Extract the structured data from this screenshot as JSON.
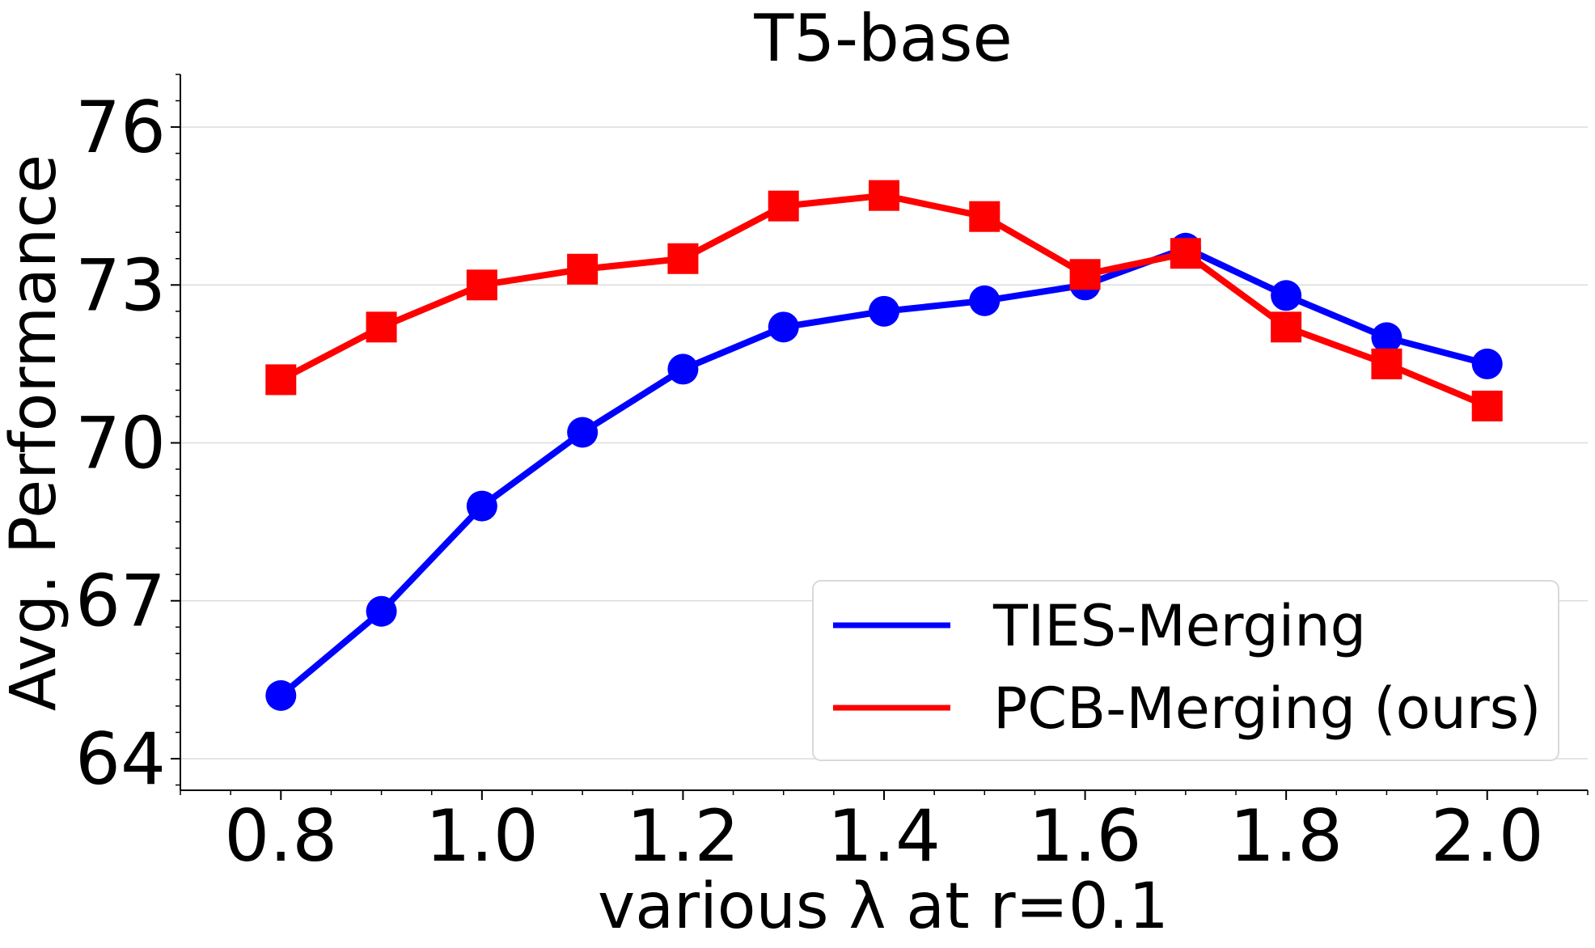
{
  "chart_data": {
    "type": "line",
    "title": "T5-base",
    "xlabel": "various λ at r=0.1",
    "ylabel": "Avg. Performance",
    "x": [
      0.8,
      0.9,
      1.0,
      1.1,
      1.2,
      1.3,
      1.4,
      1.5,
      1.6,
      1.7,
      1.8,
      1.9,
      2.0
    ],
    "xlim": [
      0.7,
      2.1
    ],
    "ylim": [
      63.4,
      77.0
    ],
    "xticks": [
      0.8,
      1.0,
      1.2,
      1.4,
      1.6,
      1.8,
      2.0
    ],
    "xtick_labels": [
      "0.8",
      "1.0",
      "1.2",
      "1.4",
      "1.6",
      "1.8",
      "2.0"
    ],
    "yticks": [
      64,
      67,
      70,
      73,
      76
    ],
    "ytick_labels": [
      "64",
      "67",
      "70",
      "73",
      "76"
    ],
    "grid": "horizontal",
    "legend_position": "lower-right",
    "series": [
      {
        "name": "TIES-Merging",
        "color": "#0000ff",
        "marker": "circle",
        "values": [
          65.2,
          66.8,
          68.8,
          70.2,
          71.4,
          72.2,
          72.5,
          72.7,
          73.0,
          73.7,
          72.8,
          72.0,
          71.5
        ]
      },
      {
        "name": "PCB-Merging (ours)",
        "color": "#ff0000",
        "marker": "square",
        "values": [
          71.2,
          72.2,
          73.0,
          73.3,
          73.5,
          74.5,
          74.7,
          74.3,
          73.2,
          73.6,
          72.2,
          71.5,
          70.7
        ]
      }
    ]
  }
}
